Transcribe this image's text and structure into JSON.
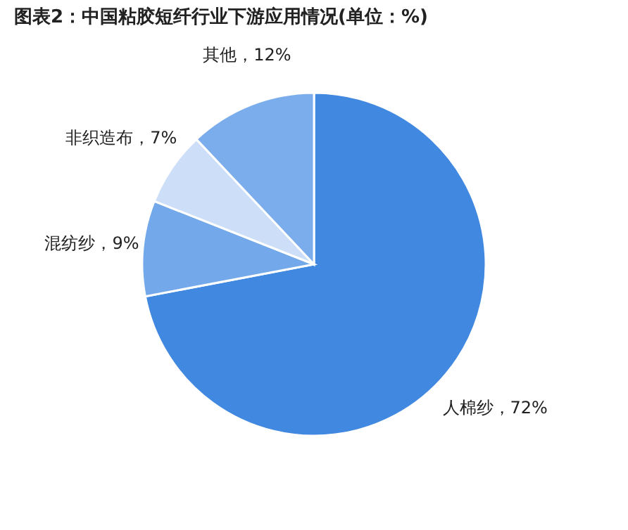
{
  "chart_data": {
    "type": "pie",
    "title": "图表2：中国粘胶短纤行业下游应用情况(单位：%)",
    "categories": [
      "人棉纱",
      "混纺纱",
      "非织造布",
      "其他"
    ],
    "values": [
      72,
      9,
      7,
      12
    ],
    "colors": [
      "#4188e1",
      "#73a8ea",
      "#cddff8",
      "#7badec"
    ],
    "value_labels": [
      "，72%",
      "，9%",
      "，7%",
      "，12%"
    ],
    "legend": false
  }
}
